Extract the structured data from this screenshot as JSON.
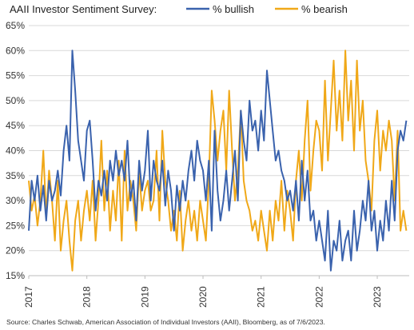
{
  "chart_data": {
    "type": "line",
    "title": "AAII Investor Sentiment Survey:",
    "xlabel": "",
    "ylabel": "",
    "x_ticks": [
      "2017",
      "2018",
      "2019",
      "2020",
      "2021",
      "2022",
      "2023"
    ],
    "y_ticks": [
      "65%",
      "60%",
      "55%",
      "50%",
      "45%",
      "40%",
      "35%",
      "30%",
      "25%",
      "20%",
      "15%"
    ],
    "ylim": [
      15,
      65
    ],
    "xlim": [
      2017.0,
      2023.55
    ],
    "grid": "horizontal",
    "legend_position": "top",
    "series": [
      {
        "name": "% bullish",
        "color": "#3a62ad",
        "x": [
          2017.0,
          2017.05,
          2017.1,
          2017.15,
          2017.2,
          2017.25,
          2017.3,
          2017.35,
          2017.4,
          2017.45,
          2017.5,
          2017.55,
          2017.6,
          2017.65,
          2017.7,
          2017.75,
          2017.8,
          2017.85,
          2017.9,
          2017.95,
          2018.0,
          2018.05,
          2018.1,
          2018.15,
          2018.2,
          2018.25,
          2018.3,
          2018.35,
          2018.4,
          2018.45,
          2018.5,
          2018.55,
          2018.6,
          2018.65,
          2018.7,
          2018.75,
          2018.8,
          2018.85,
          2018.9,
          2018.95,
          2019.0,
          2019.05,
          2019.1,
          2019.15,
          2019.2,
          2019.25,
          2019.3,
          2019.35,
          2019.4,
          2019.45,
          2019.5,
          2019.55,
          2019.6,
          2019.65,
          2019.7,
          2019.75,
          2019.8,
          2019.85,
          2019.9,
          2019.95,
          2020.0,
          2020.05,
          2020.1,
          2020.15,
          2020.2,
          2020.25,
          2020.3,
          2020.35,
          2020.4,
          2020.45,
          2020.5,
          2020.55,
          2020.6,
          2020.65,
          2020.7,
          2020.75,
          2020.8,
          2020.85,
          2020.9,
          2020.95,
          2021.0,
          2021.05,
          2021.1,
          2021.15,
          2021.2,
          2021.25,
          2021.3,
          2021.35,
          2021.4,
          2021.45,
          2021.5,
          2021.55,
          2021.6,
          2021.65,
          2021.7,
          2021.75,
          2021.8,
          2021.85,
          2021.9,
          2021.95,
          2022.0,
          2022.05,
          2022.1,
          2022.15,
          2022.2,
          2022.25,
          2022.3,
          2022.35,
          2022.4,
          2022.45,
          2022.5,
          2022.55,
          2022.6,
          2022.65,
          2022.7,
          2022.75,
          2022.8,
          2022.85,
          2022.9,
          2022.95,
          2023.0,
          2023.05,
          2023.1,
          2023.15,
          2023.2,
          2023.25,
          2023.3,
          2023.35,
          2023.4,
          2023.45,
          2023.5
        ],
        "y": [
          24,
          34,
          30,
          35,
          28,
          33,
          26,
          34,
          30,
          32,
          36,
          31,
          40,
          45,
          38,
          60,
          52,
          42,
          38,
          34,
          44,
          46,
          38,
          28,
          34,
          31,
          36,
          30,
          38,
          34,
          40,
          35,
          38,
          34,
          42,
          30,
          34,
          26,
          38,
          32,
          36,
          44,
          30,
          38,
          34,
          32,
          38,
          29,
          36,
          32,
          24,
          33,
          28,
          34,
          30,
          36,
          40,
          34,
          42,
          38,
          36,
          30,
          38,
          24,
          44,
          32,
          26,
          30,
          36,
          28,
          34,
          40,
          30,
          48,
          42,
          38,
          50,
          44,
          46,
          40,
          48,
          42,
          56,
          50,
          44,
          38,
          40,
          36,
          34,
          30,
          32,
          28,
          34,
          26,
          38,
          30,
          36,
          26,
          28,
          22,
          26,
          22,
          18,
          28,
          16,
          22,
          20,
          26,
          18,
          22,
          24,
          18,
          28,
          20,
          24,
          30,
          26,
          34,
          24,
          28,
          20,
          26,
          22,
          30,
          24,
          34,
          26,
          40,
          44,
          42,
          46
        ]
      },
      {
        "name": "% bearish",
        "color": "#f0a818",
        "x": [
          2017.0,
          2017.05,
          2017.1,
          2017.15,
          2017.2,
          2017.25,
          2017.3,
          2017.35,
          2017.4,
          2017.45,
          2017.5,
          2017.55,
          2017.6,
          2017.65,
          2017.7,
          2017.75,
          2017.8,
          2017.85,
          2017.9,
          2017.95,
          2018.0,
          2018.05,
          2018.1,
          2018.15,
          2018.2,
          2018.25,
          2018.3,
          2018.35,
          2018.4,
          2018.45,
          2018.5,
          2018.55,
          2018.6,
          2018.65,
          2018.7,
          2018.75,
          2018.8,
          2018.85,
          2018.9,
          2018.95,
          2019.0,
          2019.05,
          2019.1,
          2019.15,
          2019.2,
          2019.25,
          2019.3,
          2019.35,
          2019.4,
          2019.45,
          2019.5,
          2019.55,
          2019.6,
          2019.65,
          2019.7,
          2019.75,
          2019.8,
          2019.85,
          2019.9,
          2019.95,
          2020.0,
          2020.05,
          2020.1,
          2020.15,
          2020.2,
          2020.25,
          2020.3,
          2020.35,
          2020.4,
          2020.45,
          2020.5,
          2020.55,
          2020.6,
          2020.65,
          2020.7,
          2020.75,
          2020.8,
          2020.85,
          2020.9,
          2020.95,
          2021.0,
          2021.05,
          2021.1,
          2021.15,
          2021.2,
          2021.25,
          2021.3,
          2021.35,
          2021.4,
          2021.45,
          2021.5,
          2021.55,
          2021.6,
          2021.65,
          2021.7,
          2021.75,
          2021.8,
          2021.85,
          2021.9,
          2021.95,
          2022.0,
          2022.05,
          2022.1,
          2022.15,
          2022.2,
          2022.25,
          2022.3,
          2022.35,
          2022.4,
          2022.45,
          2022.5,
          2022.55,
          2022.6,
          2022.65,
          2022.7,
          2022.75,
          2022.8,
          2022.85,
          2022.9,
          2022.95,
          2023.0,
          2023.05,
          2023.1,
          2023.15,
          2023.2,
          2023.25,
          2023.3,
          2023.35,
          2023.4,
          2023.45,
          2023.5
        ],
        "y": [
          34,
          28,
          31,
          25,
          30,
          40,
          27,
          36,
          30,
          22,
          34,
          20,
          26,
          30,
          22,
          16,
          26,
          30,
          22,
          28,
          32,
          26,
          34,
          22,
          30,
          42,
          28,
          36,
          24,
          32,
          26,
          38,
          22,
          40,
          28,
          34,
          30,
          24,
          36,
          28,
          32,
          34,
          28,
          30,
          40,
          26,
          44,
          34,
          30,
          24,
          28,
          22,
          32,
          20,
          26,
          30,
          24,
          28,
          22,
          30,
          26,
          22,
          34,
          52,
          46,
          38,
          44,
          48,
          36,
          52,
          40,
          30,
          36,
          48,
          34,
          30,
          28,
          24,
          26,
          22,
          28,
          24,
          20,
          28,
          22,
          30,
          26,
          34,
          24,
          32,
          28,
          22,
          34,
          40,
          30,
          42,
          50,
          32,
          40,
          46,
          44,
          36,
          54,
          38,
          48,
          58,
          44,
          52,
          42,
          60,
          46,
          54,
          40,
          58,
          44,
          50,
          38,
          34,
          28,
          42,
          48,
          36,
          44,
          40,
          46,
          42,
          30,
          44,
          24,
          28,
          24
        ]
      }
    ]
  },
  "source": "Source: Charles Schwab, American Association of Individual Investors (AAII), Bloomberg, as of 7/6/2023."
}
